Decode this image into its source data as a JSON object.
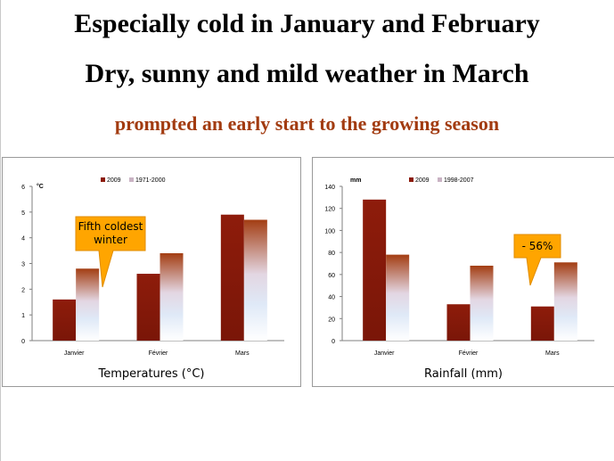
{
  "headline": {
    "line1": "Especially cold in January and February",
    "line2": "Dry, sunny and mild weather in March",
    "line3": "prompted an early start to the growing season"
  },
  "chart_data": [
    {
      "type": "bar",
      "caption": "Temperatures (°C)",
      "unit": "°C",
      "categories": [
        "Janvier",
        "Février",
        "Mars"
      ],
      "series": [
        {
          "name": "2009",
          "values": [
            1.6,
            2.6,
            4.9
          ],
          "color": "#8b1a0a"
        },
        {
          "name": "1971-2000",
          "values": [
            2.8,
            3.4,
            4.7
          ],
          "color": "#b04a1c"
        }
      ],
      "ylim": [
        0,
        6
      ],
      "yticks": [
        0,
        1,
        2,
        3,
        4,
        5,
        6
      ],
      "legend": "top-center",
      "callout": {
        "text": "Fifth coldest winter",
        "category": "Janvier"
      }
    },
    {
      "type": "bar",
      "caption": "Rainfall (mm)",
      "unit": "mm",
      "categories": [
        "Janvier",
        "Février",
        "Mars"
      ],
      "series": [
        {
          "name": "2009",
          "values": [
            128,
            33,
            31
          ],
          "color": "#8b1a0a"
        },
        {
          "name": "1998-2007",
          "values": [
            78,
            68,
            71
          ],
          "color": "#b04a1c"
        }
      ],
      "ylim": [
        0,
        140
      ],
      "yticks": [
        0,
        20,
        40,
        60,
        80,
        100,
        120,
        140
      ],
      "legend": "top-center",
      "callout": {
        "text": "- 56%",
        "category": "Mars"
      }
    }
  ]
}
